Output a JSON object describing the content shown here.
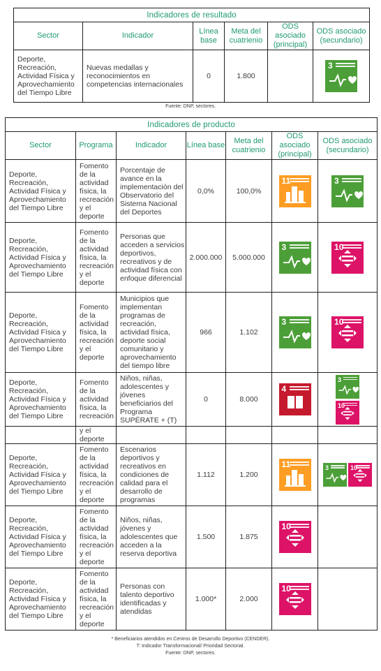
{
  "result_table": {
    "title": "Indicadores de resultado",
    "headers": [
      "Sector",
      "Indicador",
      "Línea base",
      "Meta del cuatrienio",
      "ODS asociado (principal)",
      "ODS asociado (secundario)"
    ],
    "rows": [
      {
        "sector": "Deporte, Recreación, Actividad Física y Aprovechamiento del Tiempo Libre",
        "indicador": "Nuevas medallas y reconocimientos en competencias internacionales",
        "linea_base": "0",
        "meta": "1.800",
        "ods_principal": [],
        "ods_secundario": [
          3
        ]
      }
    ],
    "source": "Fuente: DNP, sectores."
  },
  "product_table": {
    "title": "Indicadores de producto",
    "headers": [
      "Sector",
      "Programa",
      "Indicador",
      "Línea base",
      "Meta del cuatrienio",
      "ODS asociado (principal)",
      "ODS asociado (secundario)"
    ],
    "rows": [
      {
        "sector": "Deporte, Recreación, Actividad Física y Aprovechamiento del Tiempo Libre",
        "programa": "Fomento de la actividad física, la recreación y el deporte",
        "indicador": "Porcentaje de avance en la implementación del Observatorio del Sistema Nacional del Deportes",
        "linea_base": "0,0%",
        "meta": "100,0%",
        "ods_principal": [
          11
        ],
        "ods_secundario": [
          3
        ]
      },
      {
        "sector": "Deporte, Recreación, Actividad Física y Aprovechamiento del Tiempo Libre",
        "programa": "Fomento de la actividad física, la recreación y el deporte",
        "indicador": "Personas que acceden a servicios deportivos, recreativos y de actividad física con enfoque diferencial",
        "linea_base": "2.000.000",
        "meta": "5.000.000",
        "ods_principal": [
          3
        ],
        "ods_secundario": [
          10
        ]
      },
      {
        "sector": "Deporte, Recreación, Actividad Física y Aprovechamiento del Tiempo Libre",
        "programa": "Fomento de la actividad física, la recreación y el deporte",
        "indicador": "Municipios que implementan programas de recreación, actividad física, deporte social comunitario y aprovechamiento del tiempo libre",
        "linea_base": "966",
        "meta": "1.102",
        "ods_principal": [
          3
        ],
        "ods_secundario": [
          10
        ]
      },
      {
        "sector": "Deporte, Recreación, Actividad Física y Aprovechamiento del Tiempo Libre",
        "programa": "Fomento de la actividad física, la recreación",
        "programa_overflow": "y el deporte",
        "indicador": "Niños, niñas, adolescentes y jóvenes beneficiarios del Programa SUPÉRATE + (T)",
        "linea_base": "0",
        "meta": "8.000",
        "ods_principal": [
          4
        ],
        "ods_secundario": [
          3,
          10
        ]
      },
      {
        "sector": "Deporte, Recreación, Actividad Física y Aprovechamiento del Tiempo Libre",
        "programa": "Fomento de la actividad física, la recreación y el deporte",
        "indicador": "Escenarios deportivos y recreativos en condiciones de calidad para el desarrollo de programas",
        "linea_base": "1.112",
        "meta": "1.200",
        "ods_principal": [
          11
        ],
        "ods_secundario": [
          3,
          10
        ]
      },
      {
        "sector": "Deporte, Recreación, Actividad Física y Aprovechamiento del Tiempo Libre",
        "programa": "Fomento de la actividad física, la recreación y el deporte",
        "indicador": "Niños, niñas, jóvenes y adolescentes que acceden a la reserva deportiva",
        "linea_base": "1.500",
        "meta": "1.875",
        "ods_principal": [
          10
        ],
        "ods_secundario": []
      },
      {
        "sector": "Deporte, Recreación, Actividad Física y Aprovechamiento del Tiempo Libre",
        "programa": "Fomento de la actividad física, la recreación y el deporte",
        "indicador": "Personas con talento deportivo identificadas y atendidas",
        "linea_base": "1.000*",
        "meta": "2.000",
        "ods_principal": [
          10
        ],
        "ods_secundario": []
      }
    ],
    "notes": [
      "* Beneficiarios atendidos en Centros de Desarrollo Deportivo (CENDER).",
      "T: Indicador Transformacional/ Prioridad Sectorial.",
      "Fuente: DNP, sectores."
    ]
  },
  "ods_colors": {
    "3": "#4c9f38",
    "4": "#c5192d",
    "10": "#dd1367",
    "11": "#fd9d24"
  },
  "ods_icons": {
    "3": "heartbeat-icon",
    "4": "book-icon",
    "10": "equality-arrows-icon",
    "11": "city-buildings-icon"
  }
}
